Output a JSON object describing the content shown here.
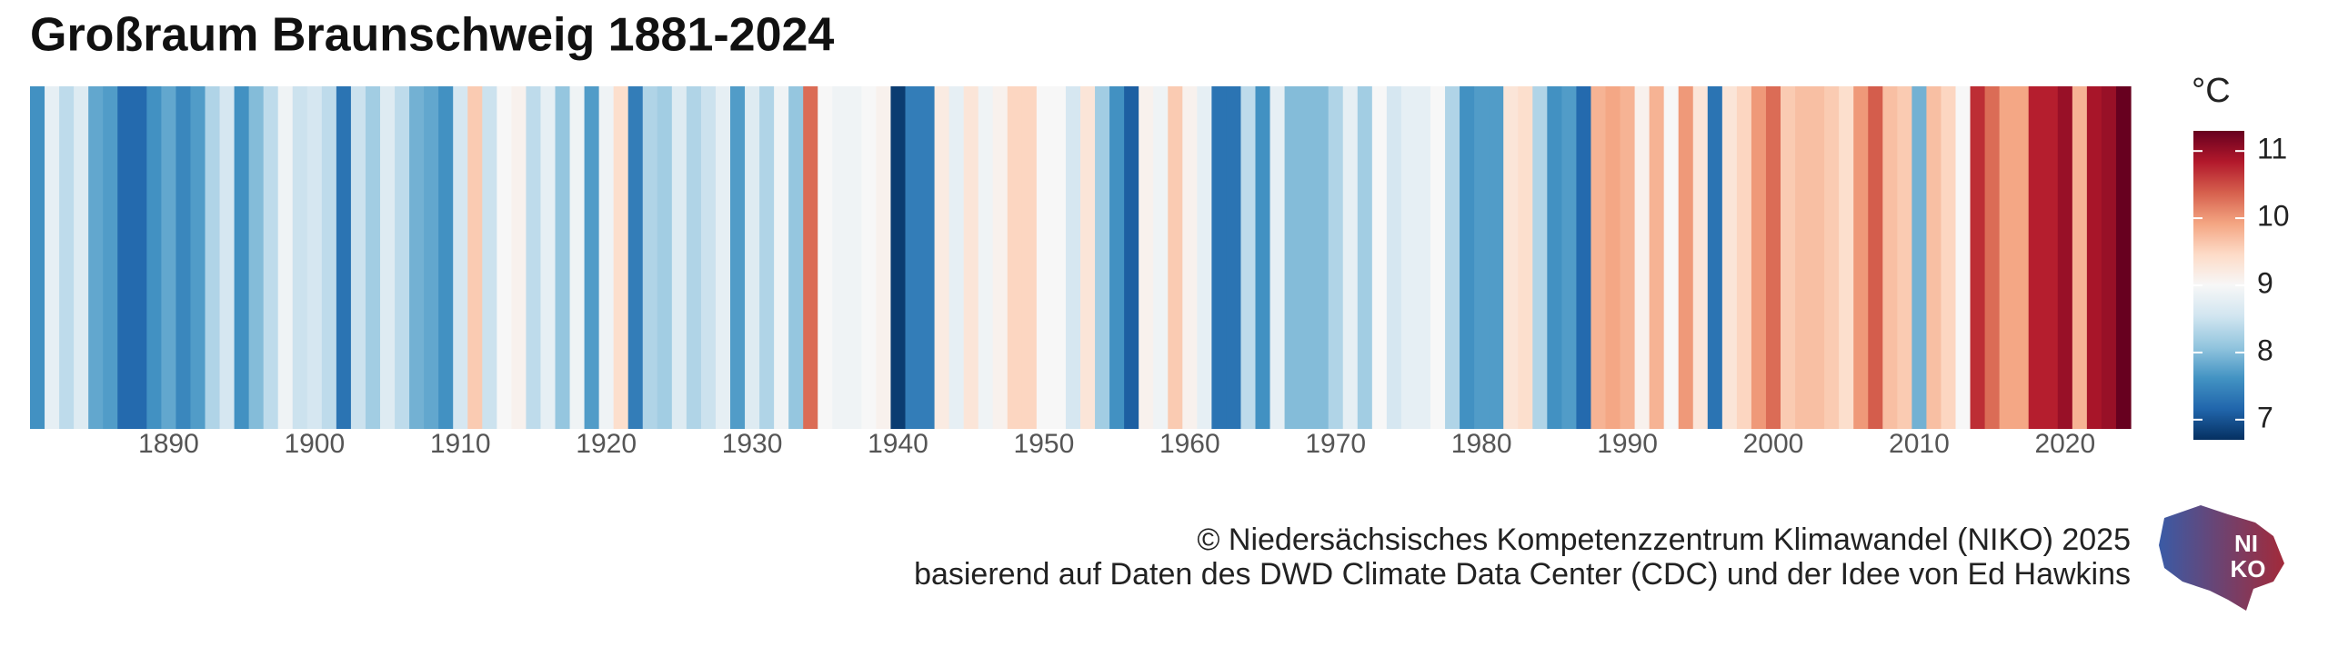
{
  "chart_data": {
    "type": "stripes",
    "title": "Großraum Braunschweig 1881-2024",
    "x": [
      1881,
      1882,
      1883,
      1884,
      1885,
      1886,
      1887,
      1888,
      1889,
      1890,
      1891,
      1892,
      1893,
      1894,
      1895,
      1896,
      1897,
      1898,
      1899,
      1900,
      1901,
      1902,
      1903,
      1904,
      1905,
      1906,
      1907,
      1908,
      1909,
      1910,
      1911,
      1912,
      1913,
      1914,
      1915,
      1916,
      1917,
      1918,
      1919,
      1920,
      1921,
      1922,
      1923,
      1924,
      1925,
      1926,
      1927,
      1928,
      1929,
      1930,
      1931,
      1932,
      1933,
      1934,
      1935,
      1936,
      1937,
      1938,
      1939,
      1940,
      1941,
      1942,
      1943,
      1944,
      1945,
      1946,
      1947,
      1948,
      1949,
      1950,
      1951,
      1952,
      1953,
      1954,
      1955,
      1956,
      1957,
      1958,
      1959,
      1960,
      1961,
      1962,
      1963,
      1964,
      1965,
      1966,
      1967,
      1968,
      1969,
      1970,
      1971,
      1972,
      1973,
      1974,
      1975,
      1976,
      1977,
      1978,
      1979,
      1980,
      1981,
      1982,
      1983,
      1984,
      1985,
      1986,
      1987,
      1988,
      1989,
      1990,
      1991,
      1992,
      1993,
      1994,
      1995,
      1996,
      1997,
      1998,
      1999,
      2000,
      2001,
      2002,
      2003,
      2004,
      2005,
      2006,
      2007,
      2008,
      2009,
      2010,
      2011,
      2012,
      2013,
      2014,
      2015,
      2016,
      2017,
      2018,
      2019,
      2020,
      2021,
      2022,
      2023,
      2024
    ],
    "values": [
      7.6,
      8.8,
      8.4,
      8.7,
      7.8,
      7.7,
      7.2,
      7.2,
      7.6,
      7.8,
      7.5,
      7.7,
      8.3,
      8.6,
      7.6,
      8.0,
      8.4,
      8.9,
      8.5,
      8.6,
      8.4,
      7.3,
      8.5,
      8.2,
      8.7,
      8.4,
      7.9,
      7.8,
      7.6,
      8.6,
      9.6,
      8.5,
      9.0,
      9.1,
      8.4,
      8.8,
      8.1,
      8.9,
      7.7,
      8.9,
      9.4,
      7.4,
      8.3,
      8.2,
      8.7,
      8.3,
      8.5,
      8.8,
      7.7,
      8.7,
      8.3,
      8.9,
      8.1,
      10.3,
      9.0,
      8.9,
      8.9,
      9.0,
      9.1,
      6.8,
      7.4,
      7.4,
      9.2,
      8.8,
      9.3,
      8.9,
      9.1,
      9.5,
      9.5,
      9.0,
      9.0,
      8.6,
      9.3,
      8.2,
      7.6,
      7.1,
      9.1,
      8.9,
      9.6,
      9.1,
      8.8,
      7.3,
      7.3,
      8.4,
      7.6,
      8.8,
      8.0,
      8.0,
      8.0,
      8.3,
      8.8,
      8.2,
      9.0,
      8.6,
      8.8,
      8.8,
      9.0,
      8.3,
      7.6,
      7.7,
      7.7,
      9.3,
      9.4,
      8.3,
      7.6,
      7.7,
      7.2,
      9.8,
      9.9,
      9.8,
      9.1,
      9.8,
      9.0,
      10.0,
      9.3,
      7.3,
      9.3,
      9.5,
      10.0,
      10.3,
      9.6,
      9.7,
      9.7,
      9.6,
      9.4,
      10.0,
      10.4,
      9.7,
      9.6,
      7.9,
      9.7,
      9.5,
      9.0,
      10.7,
      10.3,
      9.9,
      9.9,
      10.8,
      10.8,
      11.0,
      9.8,
      10.9,
      11.0,
      11.3
    ],
    "xlim": [
      1880.5,
      2024.5
    ],
    "xticks": [
      1890,
      1900,
      1910,
      1920,
      1930,
      1940,
      1950,
      1960,
      1970,
      1980,
      1990,
      2000,
      2010,
      2020
    ],
    "clim": [
      6.7,
      11.3
    ],
    "colorscale": [
      "#053061",
      "#2166ac",
      "#4393c3",
      "#92c5de",
      "#d1e5f0",
      "#f7f7f7",
      "#fddbc7",
      "#f4a582",
      "#d6604d",
      "#b2182b",
      "#67001f"
    ],
    "colorbar_label": "°C",
    "colorbar_ticks": [
      7,
      8,
      9,
      10,
      11
    ],
    "credits": [
      "© Niedersächsisches Kompetenzzentrum Klimawandel (NIKO) 2025",
      "basierend auf Daten des DWD Climate Data Center (CDC) und der Idee von Ed Hawkins"
    ]
  },
  "logo": {
    "lines": [
      "NI",
      "KO"
    ]
  }
}
